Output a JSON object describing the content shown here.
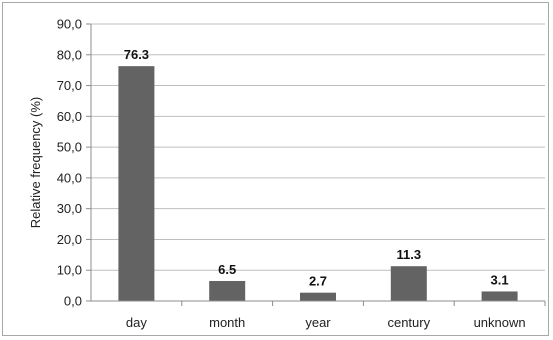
{
  "chart_data": {
    "type": "bar",
    "categories": [
      "day",
      "month",
      "year",
      "century",
      "unknown"
    ],
    "values": [
      76.3,
      6.5,
      2.7,
      11.3,
      3.1
    ],
    "data_labels": [
      "76.3",
      "6.5",
      "2.7",
      "11.3",
      "3.1"
    ],
    "title": "",
    "xlabel": "",
    "ylabel": "Relative frequency (%)",
    "ylim": [
      0,
      90
    ],
    "yticks": [
      0,
      10,
      20,
      30,
      40,
      50,
      60,
      70,
      80,
      90
    ],
    "ytick_labels": [
      "0,0",
      "10,0",
      "20,0",
      "30,0",
      "40,0",
      "50,0",
      "60,0",
      "70,0",
      "80,0",
      "90,0"
    ],
    "grid": true,
    "legend": "none",
    "colors": {
      "bar": "#636363",
      "grid": "#bfbfbf",
      "axis": "#8c8c8c"
    }
  }
}
